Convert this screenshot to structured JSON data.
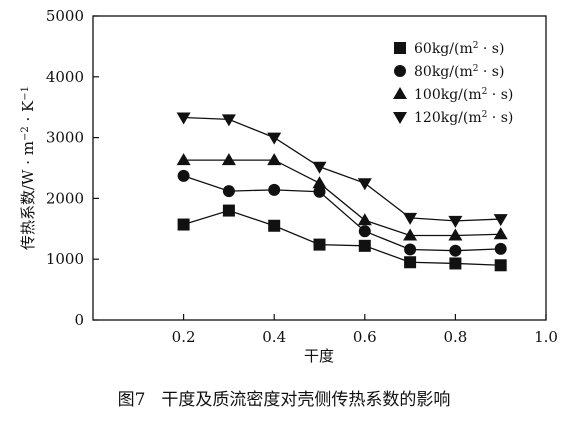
{
  "chart_data": {
    "type": "line",
    "xlabel": "干度",
    "ylabel": "传热系数/W·m⁻²·K⁻¹",
    "xlim": [
      0,
      1.0
    ],
    "ylim": [
      0,
      5000
    ],
    "x_ticks": [
      0.2,
      0.4,
      0.6,
      0.8,
      1.0
    ],
    "x_tick_labels": [
      "0.2",
      "0.4",
      "0.6",
      "0.8",
      "1.0"
    ],
    "y_ticks": [
      0,
      1000,
      2000,
      3000,
      4000,
      5000
    ],
    "y_tick_labels": [
      "0",
      "1000",
      "2000",
      "3000",
      "4000",
      "5000"
    ],
    "legend_position": "top-right",
    "grid": false,
    "x": [
      0.2,
      0.3,
      0.4,
      0.5,
      0.6,
      0.7,
      0.8,
      0.9
    ],
    "series": [
      {
        "name": "60kg/(m²·s)",
        "marker": "square",
        "values": [
          1570,
          1800,
          1550,
          1240,
          1220,
          950,
          930,
          900
        ]
      },
      {
        "name": "80kg/(m²·s)",
        "marker": "circle",
        "values": [
          2370,
          2120,
          2140,
          2110,
          1460,
          1160,
          1140,
          1170
        ]
      },
      {
        "name": "100kg/(m²·s)",
        "marker": "triangle-up",
        "values": [
          2630,
          2630,
          2630,
          2250,
          1640,
          1390,
          1390,
          1410
        ]
      },
      {
        "name": "120kg/(m²·s)",
        "marker": "triangle-down",
        "values": [
          3330,
          3300,
          3000,
          2520,
          2250,
          1680,
          1630,
          1660
        ]
      }
    ]
  },
  "legend": {
    "items": [
      {
        "name": "60kg/(m²·s)",
        "base": "60kg/(m",
        "sup": "2",
        "tail": " · s)",
        "marker": "square"
      },
      {
        "name": "80kg/(m²·s)",
        "base": "80kg/(m",
        "sup": "2",
        "tail": " · s)",
        "marker": "circle"
      },
      {
        "name": "100kg/(m²·s)",
        "base": "100kg/(m",
        "sup": "2",
        "tail": " · s)",
        "marker": "triangle-up"
      },
      {
        "name": "120kg/(m²·s)",
        "base": "120kg/(m",
        "sup": "2",
        "tail": " · s)",
        "marker": "triangle-down"
      }
    ]
  },
  "ylabel_parts": {
    "main": "传热系数/W · m",
    "sup1": "−2",
    "mid": " · K",
    "sup2": "−1"
  },
  "caption": {
    "label": "图7",
    "text": "干度及质流密度对壳侧传热系数的影响"
  },
  "colors": {
    "ink": "#111111",
    "background": "#ffffff"
  }
}
